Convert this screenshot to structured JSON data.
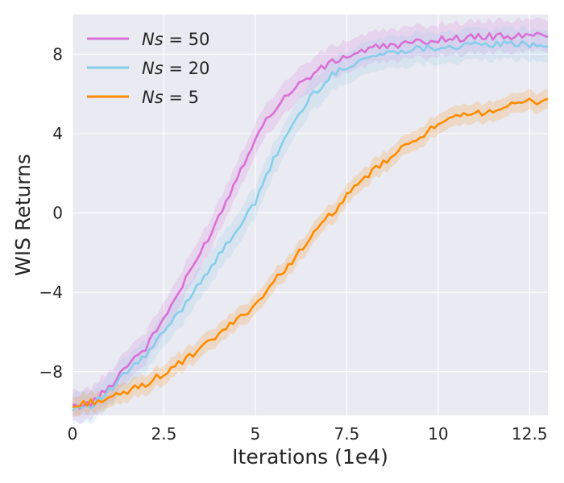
{
  "chart_data": {
    "type": "line",
    "title": "",
    "xlabel": "Iterations (1e4)",
    "ylabel": "WIS Returns",
    "xlim": [
      0,
      13
    ],
    "ylim": [
      -10.2,
      10
    ],
    "xticks": [
      0,
      2.5,
      5,
      7.5,
      10,
      12.5
    ],
    "xtick_labels": [
      "0",
      "2.5",
      "5",
      "7.5",
      "10",
      "12.5"
    ],
    "yticks": [
      -8,
      -4,
      0,
      4,
      8
    ],
    "ytick_labels": [
      "−8",
      "−4",
      "0",
      "4",
      "8"
    ],
    "grid": true,
    "legend_position": "top-left",
    "x": [
      0,
      0.5,
      1,
      1.5,
      2,
      2.5,
      3,
      3.5,
      4,
      4.5,
      5,
      5.5,
      6,
      6.5,
      7,
      7.5,
      8,
      8.5,
      9,
      9.5,
      10,
      10.5,
      11,
      11.5,
      12,
      12.5,
      13
    ],
    "series": [
      {
        "name": "Ns = 50",
        "legend_label": "Ns = 50",
        "legend_var": "Ns",
        "legend_value": "50",
        "color": "#da70d6",
        "band": 0.8,
        "values": [
          -9.8,
          -9.6,
          -8.8,
          -7.6,
          -6.8,
          -5.3,
          -3.7,
          -2.0,
          -0.2,
          1.8,
          3.8,
          5.2,
          6.2,
          6.9,
          7.5,
          7.9,
          8.2,
          8.4,
          8.5,
          8.6,
          8.75,
          8.8,
          8.85,
          8.9,
          8.9,
          8.9,
          9.0
        ]
      },
      {
        "name": "Ns = 20",
        "legend_label": "Ns = 20",
        "legend_var": "Ns",
        "legend_value": "20",
        "color": "#87ceeb",
        "band": 0.8,
        "values": [
          -9.8,
          -9.7,
          -9.0,
          -8.0,
          -7.2,
          -6.0,
          -4.8,
          -3.4,
          -2.2,
          -0.8,
          0.5,
          2.7,
          4.4,
          5.8,
          6.8,
          7.4,
          7.8,
          8.0,
          8.2,
          8.3,
          8.35,
          8.4,
          8.45,
          8.5,
          8.5,
          8.5,
          8.5
        ]
      },
      {
        "name": "Ns = 5",
        "legend_label": "Ns = 5",
        "legend_var": "Ns",
        "legend_value": "5",
        "color": "#ff8c00",
        "band": 0.5,
        "values": [
          -9.8,
          -9.5,
          -9.4,
          -9.0,
          -8.6,
          -8.1,
          -7.5,
          -6.9,
          -6.1,
          -5.4,
          -4.6,
          -3.5,
          -2.4,
          -1.3,
          -0.2,
          0.8,
          1.8,
          2.5,
          3.2,
          3.9,
          4.4,
          4.8,
          5.0,
          5.2,
          5.4,
          5.6,
          5.7
        ]
      }
    ]
  }
}
